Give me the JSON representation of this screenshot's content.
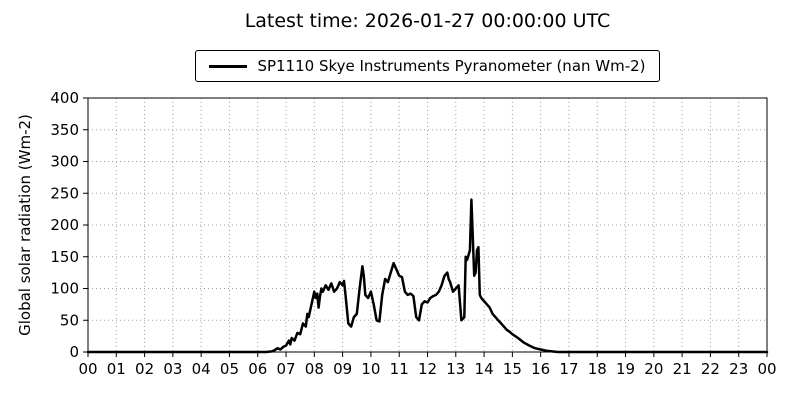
{
  "title": "Latest time: 2026-01-27 00:00:00 UTC",
  "legend": {
    "label": "SP1110 Skye Instruments Pyranometer (nan Wm-2)",
    "line_color": "#000000"
  },
  "chart_data": {
    "type": "line",
    "title": "Latest time: 2026-01-27 00:00:00 UTC",
    "xlabel": "",
    "ylabel": "Global solar radiation (Wm-2)",
    "xlim": [
      0,
      24
    ],
    "ylim": [
      0,
      400
    ],
    "x_ticks": [
      0,
      1,
      2,
      3,
      4,
      5,
      6,
      7,
      8,
      9,
      10,
      11,
      12,
      13,
      14,
      15,
      16,
      17,
      18,
      19,
      20,
      21,
      22,
      23,
      24
    ],
    "x_tick_labels": [
      "00",
      "01",
      "02",
      "03",
      "04",
      "05",
      "06",
      "07",
      "08",
      "09",
      "10",
      "11",
      "12",
      "13",
      "14",
      "15",
      "16",
      "17",
      "18",
      "19",
      "20",
      "21",
      "22",
      "23",
      "00"
    ],
    "y_ticks": [
      0,
      50,
      100,
      150,
      200,
      250,
      300,
      350,
      400
    ],
    "grid": "dotted",
    "grid_color": "#a0a0a0",
    "legend_position": "top-center",
    "series": [
      {
        "name": "SP1110 Skye Instruments Pyranometer (nan Wm-2)",
        "color": "#000000",
        "x": [
          0,
          0.5,
          1,
          1.5,
          2,
          2.5,
          3,
          3.5,
          4,
          4.5,
          5,
          5.5,
          6,
          6.3,
          6.5,
          6.6,
          6.7,
          6.8,
          6.9,
          7.0,
          7.1,
          7.15,
          7.2,
          7.3,
          7.4,
          7.5,
          7.6,
          7.7,
          7.75,
          7.8,
          7.9,
          8.0,
          8.05,
          8.1,
          8.15,
          8.2,
          8.25,
          8.3,
          8.4,
          8.5,
          8.6,
          8.7,
          8.8,
          8.9,
          9.0,
          9.05,
          9.1,
          9.2,
          9.3,
          9.4,
          9.5,
          9.6,
          9.7,
          9.75,
          9.8,
          9.9,
          10.0,
          10.1,
          10.2,
          10.3,
          10.4,
          10.5,
          10.6,
          10.7,
          10.8,
          10.9,
          11.0,
          11.1,
          11.2,
          11.3,
          11.4,
          11.5,
          11.6,
          11.7,
          11.8,
          11.9,
          12.0,
          12.1,
          12.2,
          12.3,
          12.4,
          12.5,
          12.6,
          12.7,
          12.75,
          12.8,
          12.9,
          13.0,
          13.1,
          13.2,
          13.3,
          13.35,
          13.4,
          13.5,
          13.55,
          13.6,
          13.65,
          13.7,
          13.75,
          13.8,
          13.85,
          13.9,
          14.0,
          14.1,
          14.2,
          14.3,
          14.4,
          14.5,
          14.6,
          14.7,
          14.8,
          14.9,
          15.0,
          15.2,
          15.4,
          15.6,
          15.8,
          16.0,
          16.2,
          16.4,
          16.6,
          17,
          18,
          19,
          20,
          21,
          22,
          23,
          24
        ],
        "y": [
          0,
          0,
          0,
          0,
          0,
          0,
          0,
          0,
          0,
          0,
          0,
          0,
          0,
          0,
          1,
          3,
          6,
          4,
          8,
          10,
          18,
          12,
          22,
          18,
          30,
          28,
          45,
          40,
          60,
          55,
          75,
          95,
          85,
          92,
          70,
          88,
          100,
          95,
          105,
          98,
          108,
          95,
          100,
          110,
          105,
          112,
          90,
          45,
          40,
          55,
          60,
          100,
          135,
          120,
          90,
          85,
          95,
          75,
          50,
          48,
          90,
          115,
          110,
          125,
          140,
          130,
          120,
          118,
          95,
          90,
          92,
          88,
          55,
          50,
          75,
          80,
          78,
          85,
          88,
          90,
          95,
          105,
          120,
          125,
          115,
          110,
          95,
          100,
          105,
          50,
          55,
          150,
          145,
          160,
          240,
          180,
          120,
          125,
          160,
          165,
          90,
          85,
          80,
          75,
          70,
          60,
          55,
          50,
          45,
          40,
          35,
          32,
          28,
          22,
          15,
          10,
          6,
          4,
          2,
          1,
          0,
          0,
          0,
          0,
          0,
          0,
          0,
          0,
          0
        ]
      }
    ]
  }
}
